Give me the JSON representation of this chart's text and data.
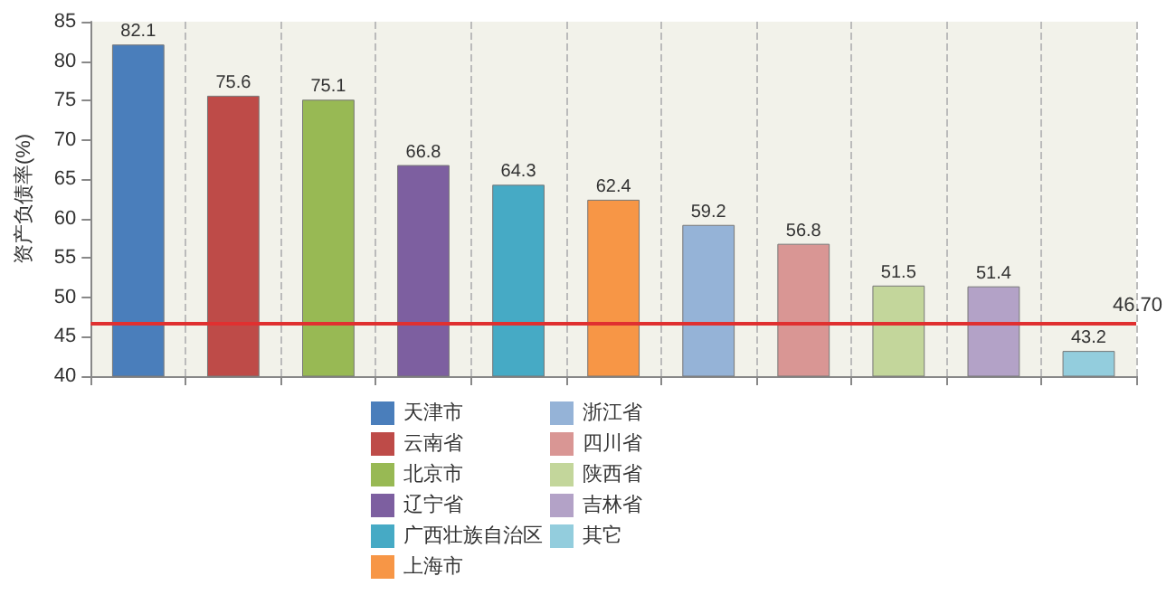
{
  "chart_data": {
    "type": "bar",
    "ylabel": "资产负债率(%)",
    "categories": [
      null,
      null,
      null,
      null,
      null,
      null,
      null,
      null,
      null,
      null,
      null
    ],
    "series": [
      {
        "name": "天津市",
        "color": "#4a7ebb",
        "values": [
          82.1,
          null,
          null,
          null,
          null,
          null,
          null,
          null,
          null,
          null,
          null
        ]
      },
      {
        "name": "云南省",
        "color": "#be4b48",
        "values": [
          null,
          75.6,
          null,
          null,
          null,
          null,
          null,
          null,
          null,
          null,
          null
        ]
      },
      {
        "name": "北京市",
        "color": "#98b954",
        "values": [
          null,
          null,
          75.1,
          null,
          null,
          null,
          null,
          null,
          null,
          null,
          null
        ]
      },
      {
        "name": "辽宁省",
        "color": "#7d5fa0",
        "values": [
          null,
          null,
          null,
          66.8,
          null,
          null,
          null,
          null,
          null,
          null,
          null
        ]
      },
      {
        "name": "广西壮族自治区",
        "color": "#46aac5",
        "values": [
          null,
          null,
          null,
          null,
          64.3,
          null,
          null,
          null,
          null,
          null,
          null
        ]
      },
      {
        "name": "上海市",
        "color": "#f79646",
        "values": [
          null,
          null,
          null,
          null,
          null,
          62.4,
          null,
          null,
          null,
          null,
          null
        ]
      },
      {
        "name": "浙江省",
        "color": "#95b3d7",
        "values": [
          null,
          null,
          null,
          null,
          null,
          null,
          59.2,
          null,
          null,
          null,
          null
        ]
      },
      {
        "name": "四川省",
        "color": "#d99694",
        "values": [
          null,
          null,
          null,
          null,
          null,
          null,
          null,
          56.8,
          null,
          null,
          null
        ]
      },
      {
        "name": "陕西省",
        "color": "#c3d69b",
        "values": [
          null,
          null,
          null,
          null,
          null,
          null,
          null,
          null,
          51.5,
          null,
          null
        ]
      },
      {
        "name": "吉林省",
        "color": "#b3a2c7",
        "values": [
          null,
          null,
          null,
          null,
          null,
          null,
          null,
          null,
          null,
          51.4,
          null
        ]
      },
      {
        "name": "其它",
        "color": "#93cddd",
        "values": [
          null,
          null,
          null,
          null,
          null,
          null,
          null,
          null,
          null,
          null,
          43.2
        ]
      }
    ],
    "ylim": [
      40,
      85
    ],
    "yticks": [
      40,
      45,
      50,
      55,
      60,
      65,
      70,
      75,
      80,
      85
    ],
    "ref_lines": [
      {
        "axis": "y",
        "value": 46.7,
        "label": "46.70",
        "color": "#e03030"
      }
    ],
    "data_labels": true,
    "grid": "x",
    "legend": "bottom",
    "tick_labels": "y"
  }
}
